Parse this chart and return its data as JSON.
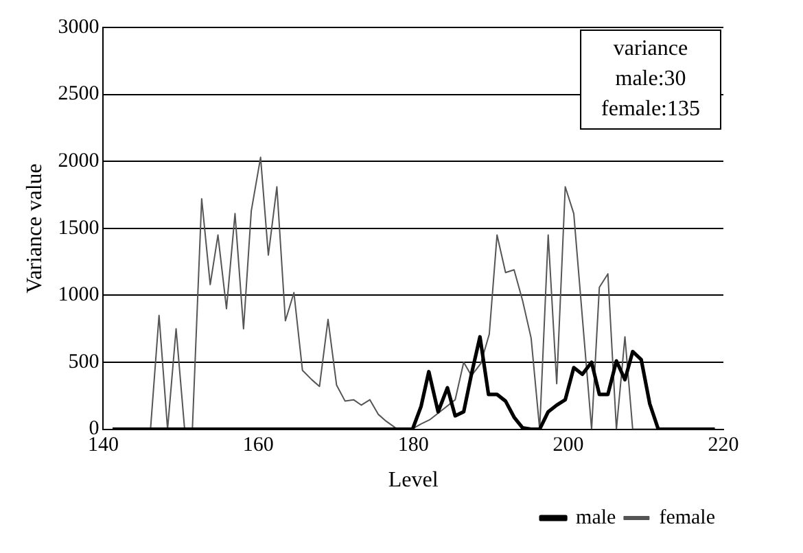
{
  "chart_data": {
    "type": "line",
    "xlabel": "Level",
    "ylabel": "Variance value",
    "xlim": [
      140,
      220
    ],
    "xticks": [
      140,
      160,
      180,
      200,
      220
    ],
    "ylim": [
      0,
      3000
    ],
    "yticks": [
      0,
      500,
      1000,
      1500,
      2000,
      2500,
      3000
    ],
    "grid": "y",
    "legend": "bottom right",
    "marker": "none",
    "annotations": [
      "variance",
      "male:30",
      "female:135"
    ],
    "series": [
      {
        "name": "male",
        "color": "#000000",
        "x": [
          141.2,
          179.9,
          181.0,
          182.0,
          183.2,
          184.4,
          185.4,
          186.5,
          187.5,
          188.6,
          189.7,
          190.8,
          191.9,
          193.0,
          194.1,
          195.2,
          196.3,
          197.4,
          198.5,
          199.6,
          200.7,
          201.8,
          203.0,
          204.0,
          205.1,
          206.2,
          207.3,
          208.3,
          209.4,
          210.5,
          211.6,
          218.9
        ],
        "values": [
          0,
          0,
          170,
          430,
          130,
          310,
          100,
          130,
          410,
          690,
          260,
          260,
          210,
          90,
          10,
          0,
          0,
          130,
          180,
          220,
          460,
          410,
          500,
          260,
          260,
          510,
          370,
          580,
          520,
          190,
          0,
          0
        ]
      },
      {
        "name": "female",
        "color": "#555555",
        "x": [
          141.2,
          146.1,
          147.2,
          148.3,
          149.4,
          150.5,
          151.5,
          152.7,
          153.8,
          154.8,
          155.9,
          157.0,
          158.1,
          159.1,
          160.3,
          161.3,
          162.4,
          163.5,
          164.6,
          165.7,
          166.9,
          167.9,
          169.0,
          170.1,
          171.2,
          172.3,
          173.3,
          174.4,
          175.5,
          176.5,
          177.7,
          178.7,
          179.8,
          181.0,
          182.1,
          183.2,
          184.3,
          185.4,
          186.5,
          187.5,
          188.7,
          189.8,
          190.8,
          191.9,
          193.0,
          194.1,
          195.2,
          196.3,
          197.4,
          198.5,
          199.6,
          200.7,
          203.0,
          204.0,
          205.1,
          206.2,
          207.3,
          208.3,
          218.9
        ],
        "values": [
          0,
          0,
          850,
          0,
          750,
          0,
          0,
          1720,
          1080,
          1450,
          900,
          1610,
          750,
          1630,
          2030,
          1300,
          1810,
          810,
          1020,
          440,
          370,
          320,
          820,
          330,
          210,
          220,
          180,
          220,
          110,
          60,
          10,
          0,
          0,
          40,
          70,
          120,
          170,
          220,
          500,
          400,
          490,
          710,
          1450,
          1170,
          1190,
          960,
          680,
          0,
          1450,
          340,
          1810,
          1610,
          0,
          1060,
          1160,
          0,
          690,
          0,
          0
        ]
      }
    ]
  }
}
